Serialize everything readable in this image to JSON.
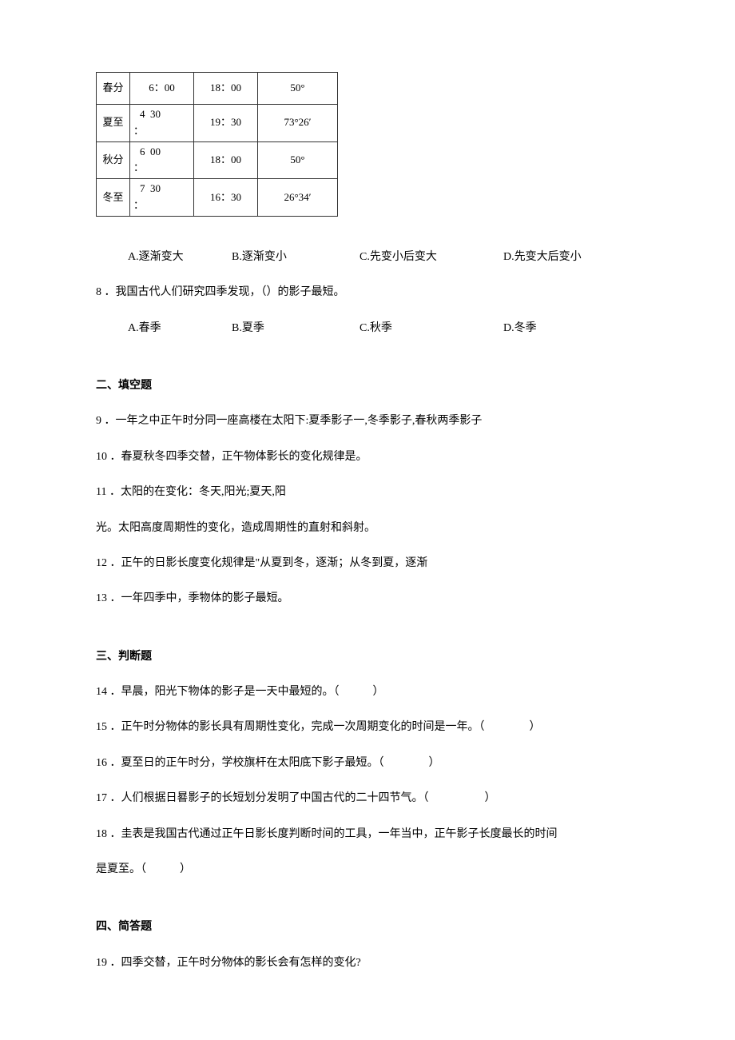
{
  "table": {
    "rows": [
      {
        "term": "春分",
        "sunrise": "6：00",
        "sunset": "18：00",
        "altitude": "50°",
        "split": false
      },
      {
        "term": "夏至",
        "sunrise_top": "4",
        "sunrise_bottom": "30",
        "sunrise_mark": "：",
        "sunset": "19：30",
        "altitude": "73°26′",
        "split": true
      },
      {
        "term": "秋分",
        "sunrise_top": "6",
        "sunrise_bottom": "00",
        "sunrise_mark": "：",
        "sunset": "18：00",
        "altitude": "50°",
        "split": true
      },
      {
        "term": "冬至",
        "sunrise_top": "7",
        "sunrise_bottom": "30",
        "sunrise_mark": "：",
        "sunset": "16：30",
        "altitude": "26°34′",
        "split": true
      }
    ]
  },
  "q7_options": {
    "a": "A.逐渐变大",
    "b": "B.逐渐变小",
    "c": "C.先变小后变大",
    "d": "D.先变大后变小"
  },
  "q8": {
    "text": "8 ．我国古代人们研究四季发现，（）的影子最短。",
    "a": "A.春季",
    "b": "B.夏季",
    "c": "C.秋季",
    "d": "D.冬季"
  },
  "section2": {
    "title": "二、填空题",
    "q9": "9 ．一年之中正午时分同一座高楼在太阳下:夏季影子一,冬季影子,春秋两季影子",
    "q10": "10 ．春夏秋冬四季交替，正午物体影长的变化规律是。",
    "q11a": "11 ．太阳的在变化：冬天,阳光;夏天,阳",
    "q11b": "光。太阳高度周期性的变化，造成周期性的直射和斜射。",
    "q12": "12 ．正午的日影长度变化规律是\"从夏到冬，逐渐；从冬到夏，逐渐",
    "q13": "13 ．一年四季中，季物体的影子最短。"
  },
  "section3": {
    "title": "三、判断题",
    "q14": "14 ．早晨，阳光下物体的影子是一天中最短的。（　　　）",
    "q15": "15 ．正午时分物体的影长具有周期性变化，完成一次周期变化的时间是一年。（　　　　）",
    "q16": "16 ．夏至日的正午时分，学校旗杆在太阳底下影子最短。（　　　　）",
    "q17": "17 ．人们根据日晷影子的长短划分发明了中国古代的二十四节气。（　　　　　）",
    "q18a": "18 ．圭表是我国古代通过正午日影长度判断时间的工具，一年当中，正午影子长度最长的时间",
    "q18b": "是夏至。（　　　）"
  },
  "section4": {
    "title": "四、简答题",
    "q19": "19 ．四季交替，正午时分物体的影长会有怎样的变化?"
  }
}
